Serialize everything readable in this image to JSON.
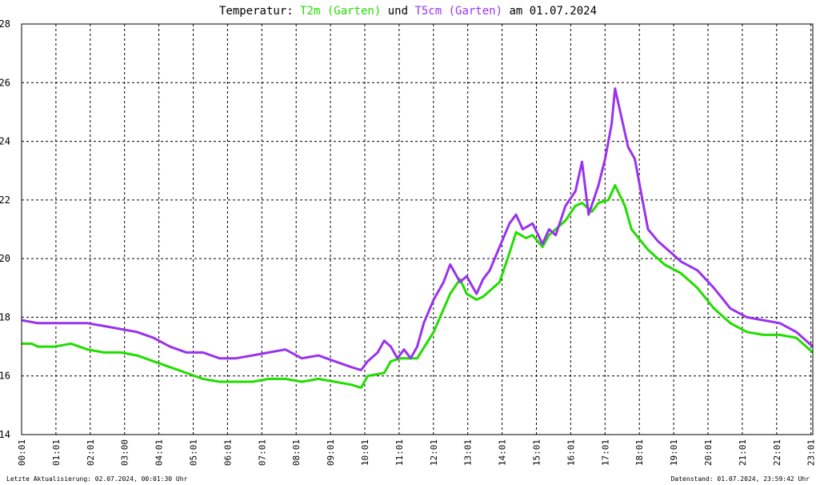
{
  "title": {
    "prefix": "Temperatur: ",
    "series1": "T2m (Garten)",
    "middle": " und ",
    "series2": "T5cm (Garten)",
    "suffix": " am 01.07.2024"
  },
  "footer": {
    "left": "Letzte Aktualisierung: 02.07.2024, 00:01:30 Uhr",
    "right": "Datenstand: 01.07.2024, 23:59:42 Uhr"
  },
  "colors": {
    "t2m": "#22dd00",
    "t5cm": "#9933ee"
  },
  "chart_data": {
    "type": "line",
    "title": "Temperatur: T2m (Garten) und T5cm (Garten) am 01.07.2024",
    "xlabel": "",
    "ylabel": "",
    "xlim": [
      0,
      24
    ],
    "ylim": [
      14,
      28
    ],
    "grid": true,
    "y_ticks": [
      "14",
      "16",
      "18",
      "20",
      "22",
      "24",
      "26",
      "28"
    ],
    "x_ticks": [
      "00:01",
      "01:01",
      "02:01",
      "03:00",
      "04:01",
      "05:01",
      "06:01",
      "07:01",
      "08:01",
      "09:01",
      "10:01",
      "11:01",
      "12:01",
      "13:01",
      "14:01",
      "15:01",
      "16:01",
      "17:01",
      "18:01",
      "19:01",
      "20:01",
      "21:01",
      "22:01",
      "23:01"
    ],
    "series": [
      {
        "name": "T2m (Garten)",
        "x": [
          0,
          0.3,
          0.5,
          1,
          1.5,
          2,
          2.5,
          3,
          3.5,
          4,
          4.5,
          5,
          5.5,
          6,
          6.5,
          7,
          7.5,
          8,
          8.5,
          9,
          9.5,
          10,
          10.3,
          10.5,
          11,
          11.2,
          11.5,
          12,
          12.5,
          13,
          13.3,
          13.5,
          13.8,
          14,
          14.3,
          14.5,
          14.8,
          15,
          15.3,
          15.5,
          15.8,
          16,
          16.3,
          16.5,
          16.8,
          17,
          17.3,
          17.5,
          17.8,
          18,
          18.3,
          18.5,
          19,
          19.3,
          19.5,
          20,
          20.5,
          21,
          21.5,
          22,
          22.5,
          23,
          23.5,
          24
        ],
        "y": [
          17.1,
          17.1,
          17.0,
          17.0,
          17.1,
          16.9,
          16.8,
          16.8,
          16.7,
          16.5,
          16.3,
          16.1,
          15.9,
          15.8,
          15.8,
          15.8,
          15.9,
          15.9,
          15.8,
          15.9,
          15.8,
          15.7,
          15.6,
          16.0,
          16.1,
          16.5,
          16.6,
          16.6,
          17.5,
          18.8,
          19.3,
          18.8,
          18.6,
          18.7,
          19.0,
          19.2,
          20.2,
          20.9,
          20.7,
          20.8,
          20.4,
          20.8,
          21.1,
          21.3,
          21.8,
          21.9,
          21.6,
          21.9,
          22.0,
          22.5,
          21.8,
          21.0,
          20.3,
          20.0,
          19.8,
          19.5,
          19.0,
          18.3,
          17.8,
          17.5,
          17.4,
          17.4,
          17.3,
          16.8
        ]
      },
      {
        "name": "T5cm (Garten)",
        "x": [
          0,
          0.5,
          1,
          1.5,
          2,
          2.5,
          3,
          3.5,
          4,
          4.5,
          5,
          5.5,
          6,
          6.5,
          7,
          7.5,
          8,
          8.5,
          9,
          9.5,
          10,
          10.3,
          10.5,
          10.8,
          11,
          11.2,
          11.4,
          11.6,
          11.8,
          12,
          12.2,
          12.5,
          12.8,
          13,
          13.3,
          13.5,
          13.8,
          14,
          14.2,
          14.5,
          14.8,
          15,
          15.2,
          15.5,
          15.8,
          16,
          16.2,
          16.5,
          16.8,
          17,
          17.2,
          17.5,
          17.7,
          17.9,
          18,
          18.2,
          18.4,
          18.6,
          18.8,
          19,
          19.3,
          19.5,
          20,
          20.5,
          21,
          21.5,
          22,
          22.5,
          23,
          23.5,
          24
        ],
        "y": [
          17.9,
          17.8,
          17.8,
          17.8,
          17.8,
          17.7,
          17.6,
          17.5,
          17.3,
          17.0,
          16.8,
          16.8,
          16.6,
          16.6,
          16.7,
          16.8,
          16.9,
          16.6,
          16.7,
          16.5,
          16.3,
          16.2,
          16.5,
          16.8,
          17.2,
          17.0,
          16.6,
          16.9,
          16.6,
          17.0,
          17.8,
          18.6,
          19.2,
          19.8,
          19.2,
          19.4,
          18.8,
          19.3,
          19.6,
          20.4,
          21.2,
          21.5,
          21.0,
          21.2,
          20.5,
          21.0,
          20.8,
          21.8,
          22.3,
          23.3,
          21.5,
          22.5,
          23.4,
          24.6,
          25.8,
          24.8,
          23.8,
          23.4,
          22.2,
          21.0,
          20.6,
          20.4,
          19.9,
          19.6,
          19.0,
          18.3,
          18.0,
          17.9,
          17.8,
          17.5,
          17.0
        ]
      }
    ]
  }
}
